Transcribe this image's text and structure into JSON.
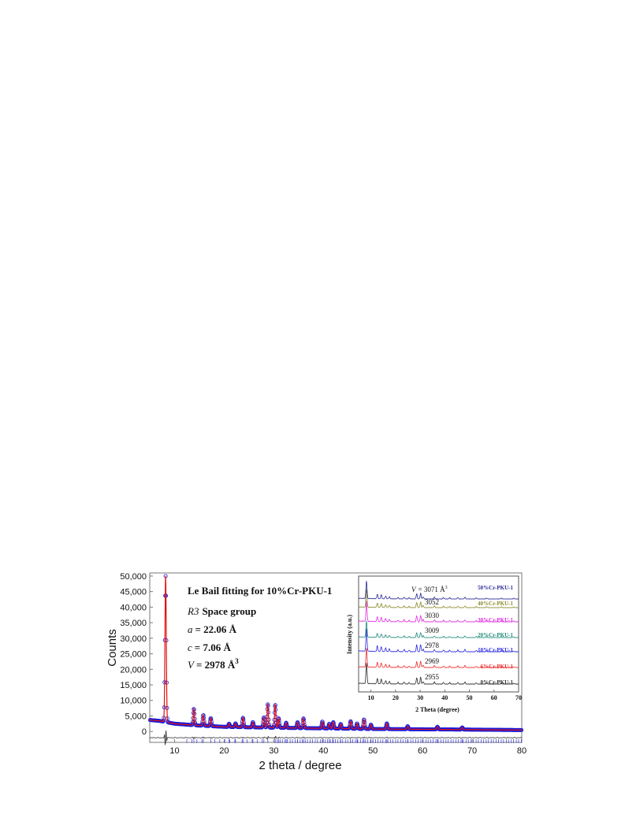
{
  "chart_data": [
    {
      "type": "line",
      "xlabel": "2 theta / degree",
      "ylabel": "Counts",
      "xlim": [
        5,
        80
      ],
      "ylim": [
        -3500,
        51000
      ],
      "xticks": [
        10,
        20,
        30,
        40,
        50,
        60,
        70,
        80
      ],
      "yticks": [
        0,
        5000,
        10000,
        15000,
        20000,
        25000,
        30000,
        35000,
        40000,
        45000,
        50000
      ],
      "ytick_labels": [
        "0",
        "5,000",
        "10,000",
        "15,000",
        "20,000",
        "25,000",
        "30,000",
        "35,000",
        "40,000",
        "45,000",
        "50,000"
      ],
      "annotation": {
        "title": "Le Bail fitting for 10%Cr-PKU-1",
        "space_group_symbol": "R3",
        "space_group_text": "Space group",
        "a_label": "a",
        "a_value": "= 22.06 Å",
        "c_label": "c",
        "c_value": "= 7.06 Å",
        "v_label": "V",
        "v_value": "= 2978 Å",
        "v_superscript": "3"
      },
      "background": [
        [
          5,
          3700
        ],
        [
          7,
          3400
        ],
        [
          10,
          2500
        ],
        [
          15,
          1900
        ],
        [
          20,
          1500
        ],
        [
          30,
          1200
        ],
        [
          40,
          1000
        ],
        [
          50,
          800
        ],
        [
          60,
          700
        ],
        [
          70,
          600
        ],
        [
          80,
          450
        ]
      ],
      "peaks": [
        {
          "x": 8.2,
          "y": 50000
        },
        {
          "x": 13.9,
          "y": 7300
        },
        {
          "x": 15.8,
          "y": 5300
        },
        {
          "x": 17.3,
          "y": 4300
        },
        {
          "x": 21.0,
          "y": 2500
        },
        {
          "x": 22.3,
          "y": 2600
        },
        {
          "x": 23.8,
          "y": 4400
        },
        {
          "x": 25.8,
          "y": 3000
        },
        {
          "x": 28.0,
          "y": 4500
        },
        {
          "x": 28.8,
          "y": 8800
        },
        {
          "x": 30.3,
          "y": 8600
        },
        {
          "x": 31.0,
          "y": 4200
        },
        {
          "x": 32.5,
          "y": 2800
        },
        {
          "x": 34.8,
          "y": 3000
        },
        {
          "x": 36.0,
          "y": 4200
        },
        {
          "x": 39.8,
          "y": 3200
        },
        {
          "x": 41.2,
          "y": 2500
        },
        {
          "x": 42.0,
          "y": 3000
        },
        {
          "x": 43.5,
          "y": 2400
        },
        {
          "x": 45.5,
          "y": 3300
        },
        {
          "x": 46.8,
          "y": 2600
        },
        {
          "x": 48.2,
          "y": 3900
        },
        {
          "x": 49.6,
          "y": 2200
        },
        {
          "x": 52.8,
          "y": 2600
        },
        {
          "x": 57.0,
          "y": 1700
        },
        {
          "x": 63.0,
          "y": 1500
        },
        {
          "x": 68.0,
          "y": 1300
        }
      ],
      "series": [
        {
          "role": "observed",
          "color": "#1a1ad8"
        },
        {
          "role": "calculated",
          "color": "#e01010"
        },
        {
          "role": "difference",
          "color": "#303030"
        },
        {
          "role": "reflection-markers",
          "color": "#4b4bd8"
        }
      ]
    },
    {
      "type": "line",
      "xlabel": "2 Theta (degree)",
      "ylabel": "Intensity (a.u.)",
      "xlim": [
        5,
        70
      ],
      "xticks": [
        10,
        20,
        30,
        40,
        50,
        60,
        70
      ],
      "volume_prefix": "V",
      "volume_first_suffix": "= 3071 Å",
      "volume_superscript": "3",
      "series": [
        {
          "name": "0%Cr-PKU-1",
          "volume": "2955",
          "color": "#2a2a2a"
        },
        {
          "name": "6%Cr-PKU-1",
          "volume": "2969",
          "color": "#ee2a2a"
        },
        {
          "name": "10%Cr-PKU-1",
          "volume": "2978",
          "color": "#2a2ae0"
        },
        {
          "name": "20%Cr-PKU-1",
          "volume": "3009",
          "color": "#1e8a7a"
        },
        {
          "name": "30%Cr-PKU-1",
          "volume": "3030",
          "color": "#e02ae0"
        },
        {
          "name": "40%Cr-PKU-1",
          "volume": "3052",
          "color": "#8a8a2a"
        },
        {
          "name": "50%Cr-PKU-1",
          "volume": "3071",
          "color": "#2a2a9a"
        }
      ]
    }
  ]
}
